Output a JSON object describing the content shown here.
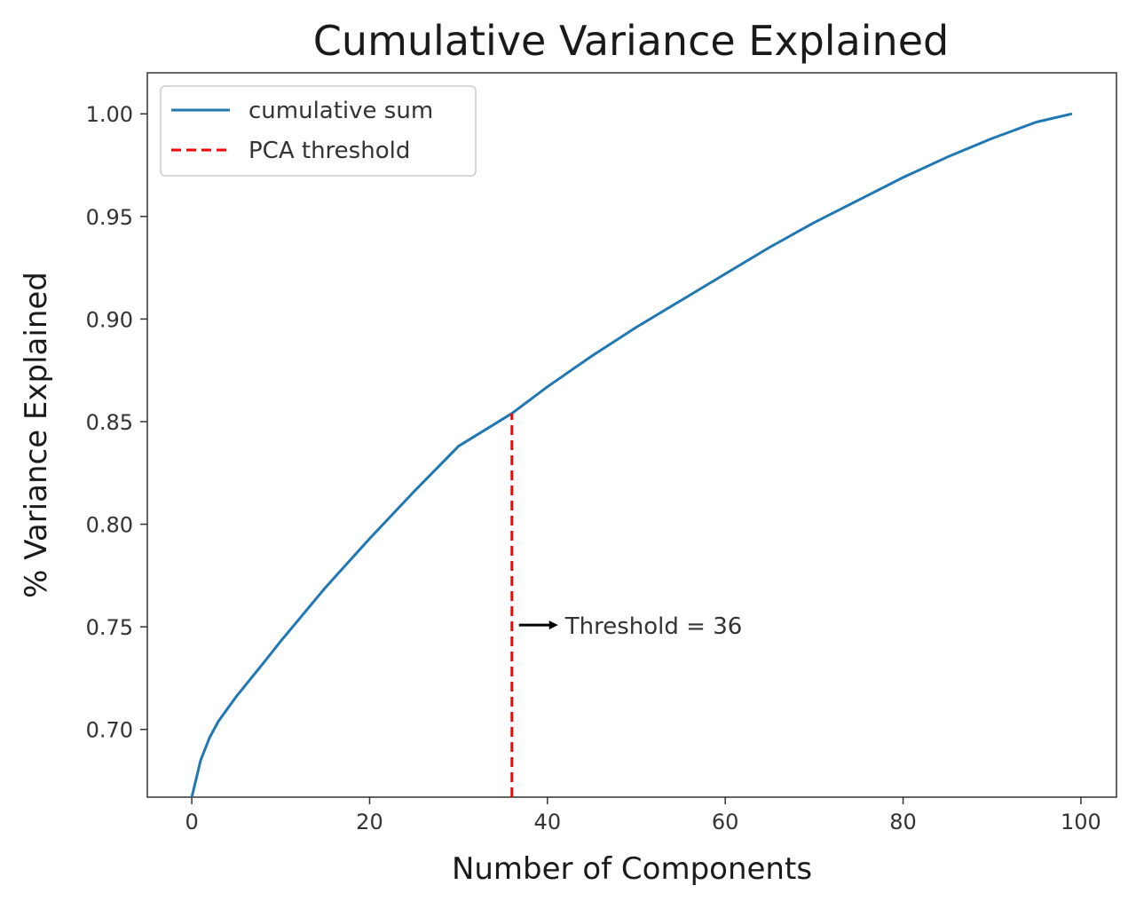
{
  "chart_data": {
    "type": "line",
    "title": "Cumulative Variance Explained",
    "xlabel": "Number of Components",
    "ylabel": "% Variance Explained",
    "xlim": [
      -5,
      104
    ],
    "ylim": [
      0.667,
      1.02
    ],
    "xticks": [
      "0",
      "20",
      "40",
      "60",
      "80",
      "100"
    ],
    "yticks": [
      "0.70",
      "0.75",
      "0.80",
      "0.85",
      "0.90",
      "0.95",
      "1.00"
    ],
    "grid": false,
    "legend_position": "top-left",
    "series": [
      {
        "name": "cumulative sum",
        "color": "#1f77b4",
        "style": "solid",
        "x": [
          0,
          1,
          2,
          3,
          5,
          8,
          10,
          15,
          20,
          25,
          30,
          36,
          40,
          45,
          50,
          55,
          60,
          65,
          70,
          75,
          80,
          85,
          90,
          95,
          99
        ],
        "y": [
          0.667,
          0.685,
          0.696,
          0.704,
          0.716,
          0.732,
          0.743,
          0.769,
          0.793,
          0.816,
          0.838,
          0.854,
          0.867,
          0.882,
          0.896,
          0.909,
          0.922,
          0.935,
          0.947,
          0.958,
          0.969,
          0.979,
          0.988,
          0.996,
          1.0
        ]
      },
      {
        "name": "PCA threshold",
        "color": "#ff0000",
        "style": "dashed",
        "x": [
          36,
          36
        ],
        "y": [
          0.667,
          0.854
        ]
      }
    ],
    "annotations": [
      {
        "text": "Threshold = 36",
        "x": 36,
        "y": 0.75
      }
    ]
  }
}
